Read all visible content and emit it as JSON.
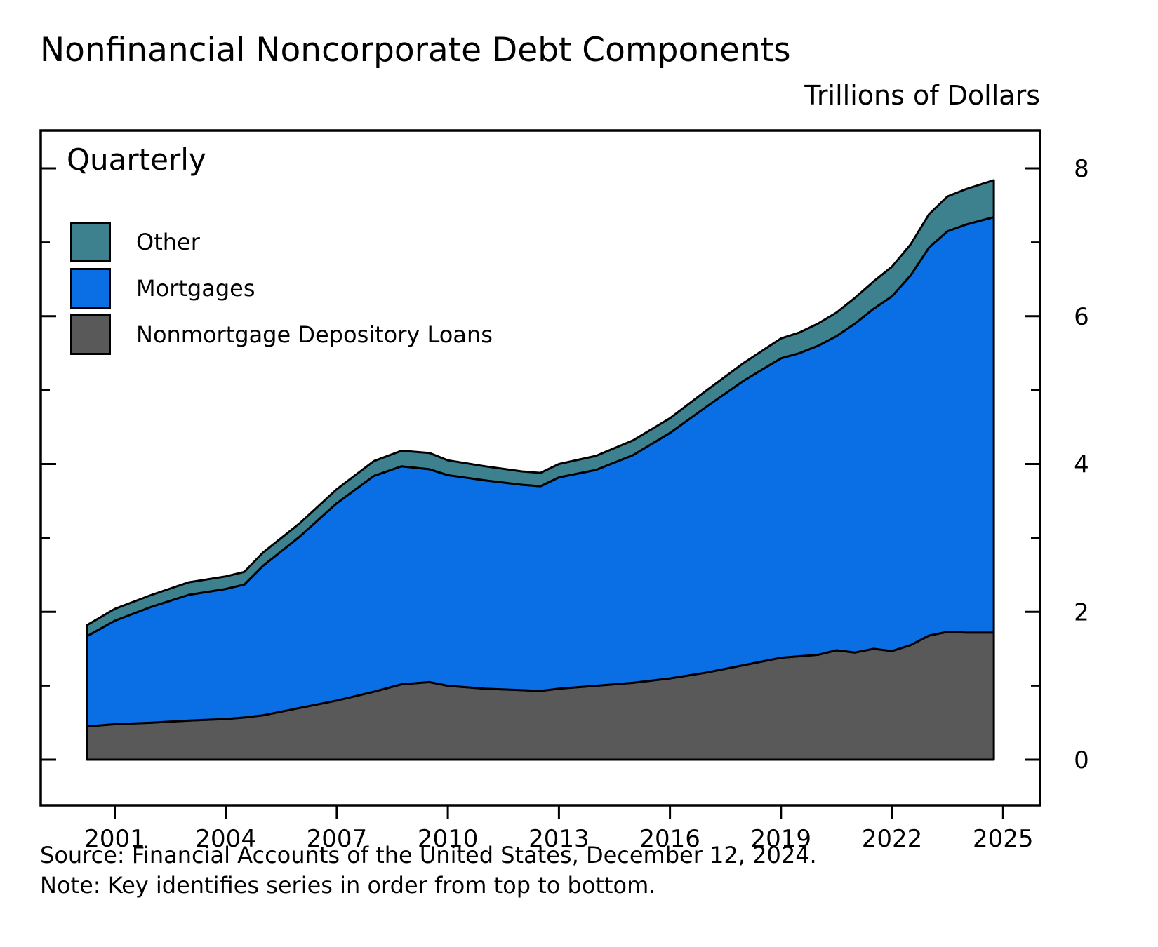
{
  "title": "Nonfinancial Noncorporate Debt Components",
  "unit_label": "Trillions of Dollars",
  "frequency_label": "Quarterly",
  "legend": [
    {
      "label": "Other",
      "color": "#3d808e"
    },
    {
      "label": "Mortgages",
      "color": "#0a6ee4"
    },
    {
      "label": "Nonmortgage Depository Loans",
      "color": "#595959"
    }
  ],
  "source": "Source: Financial Accounts of the United States, December 12, 2024.",
  "note": "Note: Key identifies series in order from top to bottom.",
  "chart_data": {
    "type": "area",
    "stacked": true,
    "title": "Nonfinancial Noncorporate Debt Components",
    "ylabel": "Trillions of Dollars",
    "xlabel": "",
    "grid": false,
    "legend_position": "top-left",
    "xlim": [
      1999,
      2026
    ],
    "ylim": [
      0,
      8
    ],
    "yticks": [
      0,
      2,
      4,
      6,
      8
    ],
    "yticks_minor": [
      1,
      3,
      5,
      7
    ],
    "xticks": [
      2001,
      2004,
      2007,
      2010,
      2013,
      2016,
      2019,
      2022,
      2025
    ],
    "x": [
      2000.25,
      2001,
      2002,
      2003,
      2004,
      2004.5,
      2005,
      2006,
      2007,
      2008,
      2008.75,
      2009.5,
      2010,
      2011,
      2012,
      2012.5,
      2013,
      2014,
      2015,
      2016,
      2017,
      2018,
      2019,
      2019.5,
      2020,
      2020.5,
      2021,
      2021.5,
      2022,
      2022.5,
      2023,
      2023.5,
      2024,
      2024.75
    ],
    "series": [
      {
        "name": "Nonmortgage Depository Loans",
        "color": "#595959",
        "values": [
          0.45,
          0.48,
          0.5,
          0.53,
          0.55,
          0.57,
          0.6,
          0.7,
          0.8,
          0.92,
          1.02,
          1.05,
          1.0,
          0.96,
          0.94,
          0.93,
          0.96,
          1.0,
          1.04,
          1.1,
          1.18,
          1.28,
          1.38,
          1.4,
          1.42,
          1.48,
          1.45,
          1.5,
          1.47,
          1.55,
          1.68,
          1.73,
          1.72,
          1.72
        ]
      },
      {
        "name": "Mortgages",
        "color": "#0a6ee4",
        "values": [
          1.22,
          1.4,
          1.57,
          1.7,
          1.76,
          1.8,
          2.02,
          2.32,
          2.67,
          2.92,
          2.95,
          2.88,
          2.85,
          2.82,
          2.78,
          2.77,
          2.86,
          2.92,
          3.08,
          3.32,
          3.6,
          3.85,
          4.05,
          4.1,
          4.18,
          4.25,
          4.45,
          4.6,
          4.8,
          5.0,
          5.25,
          5.42,
          5.52,
          5.62
        ]
      },
      {
        "name": "Other",
        "color": "#3d808e",
        "values": [
          0.15,
          0.16,
          0.16,
          0.17,
          0.17,
          0.17,
          0.18,
          0.18,
          0.19,
          0.2,
          0.21,
          0.22,
          0.2,
          0.19,
          0.18,
          0.18,
          0.18,
          0.19,
          0.2,
          0.2,
          0.22,
          0.24,
          0.27,
          0.28,
          0.3,
          0.32,
          0.35,
          0.37,
          0.4,
          0.42,
          0.45,
          0.47,
          0.48,
          0.5
        ]
      }
    ]
  }
}
